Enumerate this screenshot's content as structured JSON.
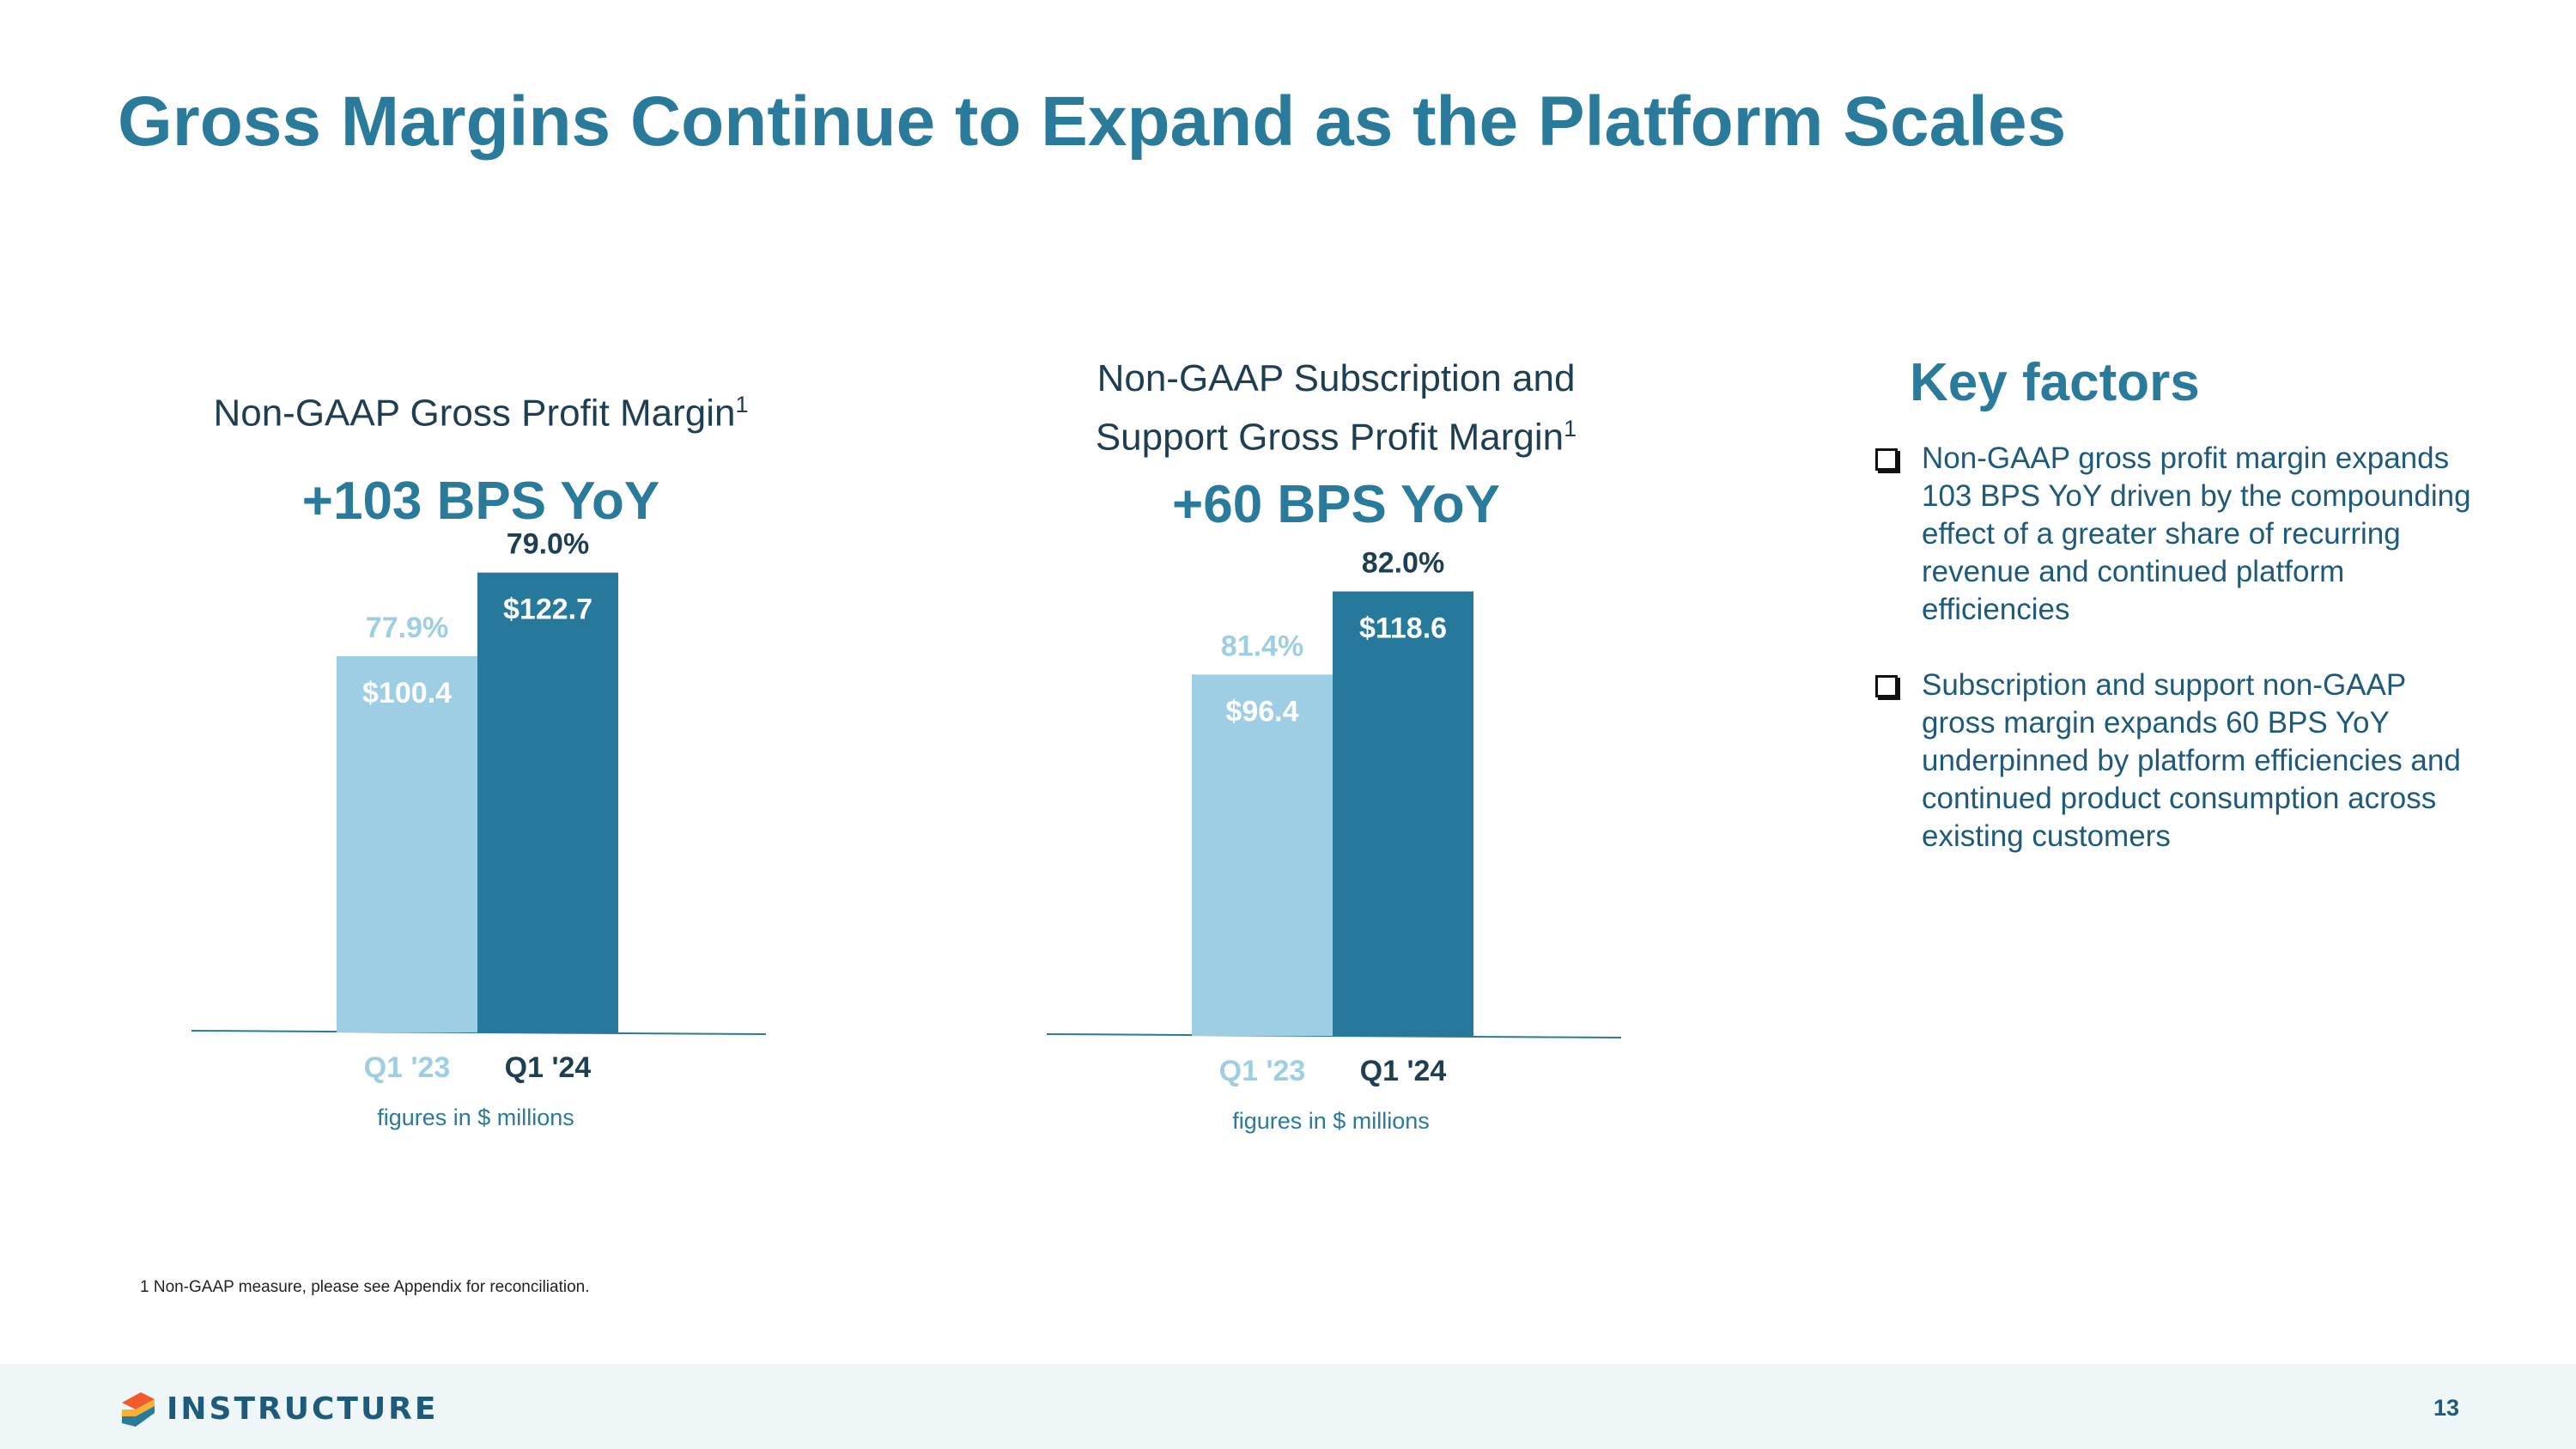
{
  "title": "Gross Margins Continue to Expand as the Platform Scales",
  "chart_data": [
    {
      "type": "bar",
      "title": "Non-GAAP Gross Profit Margin",
      "title_sup": "1",
      "headline": "+103 BPS YoY",
      "categories": [
        "Q1 '23",
        "Q1 '24"
      ],
      "values": [
        100.4,
        122.7
      ],
      "value_labels": [
        "$100.4",
        "$122.7"
      ],
      "margin_labels": [
        "77.9%",
        "79.0%"
      ],
      "colors": [
        "#9dcee3",
        "#27799c"
      ],
      "category_colors": [
        "#9dcee3",
        "#1e3f52"
      ],
      "margin_label_colors": [
        "#9dcee3",
        "#1e3f52"
      ],
      "ylim": [
        0,
        130
      ],
      "note": "figures in $ millions"
    },
    {
      "type": "bar",
      "title_line1": "Non-GAAP Subscription and",
      "title_line2": "Support Gross Profit Margin",
      "title_sup": "1",
      "headline": "+60 BPS YoY",
      "categories": [
        "Q1 '23",
        "Q1 '24"
      ],
      "values": [
        96.4,
        118.6
      ],
      "value_labels": [
        "$96.4",
        "$118.6"
      ],
      "margin_labels": [
        "81.4%",
        "82.0%"
      ],
      "colors": [
        "#9dcee3",
        "#27799c"
      ],
      "category_colors": [
        "#9dcee3",
        "#1e3f52"
      ],
      "margin_label_colors": [
        "#9dcee3",
        "#1e3f52"
      ],
      "ylim": [
        0,
        130
      ],
      "note": "figures in $ millions"
    }
  ],
  "key_factors": {
    "title": "Key factors",
    "items": [
      "Non-GAAP gross profit margin expands 103 BPS YoY driven by the compounding effect of a greater share of recurring revenue and continued platform efficiencies",
      "Subscription and support non-GAAP gross margin expands 60 BPS YoY underpinned by platform efficiencies and continued product consumption across existing customers"
    ]
  },
  "footnote": "1 Non-GAAP measure, please see Appendix for reconciliation.",
  "footer": {
    "logo_text": "INSTRUCTURE",
    "page_number": "13"
  }
}
